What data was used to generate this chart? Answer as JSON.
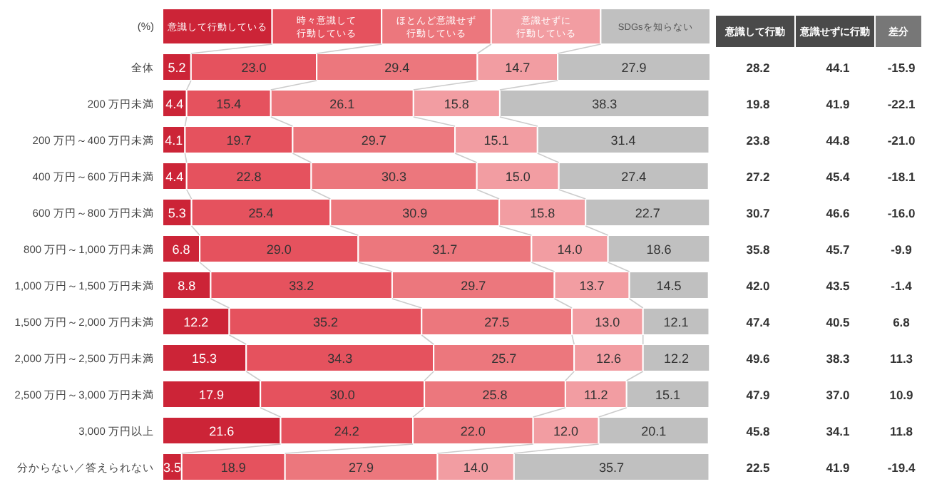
{
  "chart_data": [
    {
      "type": "bar",
      "orientation": "horizontal",
      "stacked": true,
      "legend": "top",
      "annotations": [
        "(%)"
      ],
      "categories": [
        "全体",
        "200 万円未満",
        "200 万円～400 万円未満",
        "400 万円～600 万円未満",
        "600 万円～800 万円未満",
        "800 万円～1,000 万円未満",
        "1,000 万円～1,500 万円未満",
        "1,500 万円～2,000 万円未満",
        "2,000 万円～2,500 万円未満",
        "2,500 万円～3,000 万円未満",
        "3,000 万円以上",
        "分からない／答えられない"
      ],
      "series": [
        {
          "name": "意識して行動している",
          "color": "#cc2437",
          "values": [
            5.2,
            4.4,
            4.1,
            4.4,
            5.3,
            6.8,
            8.8,
            12.2,
            15.3,
            17.9,
            21.6,
            3.5
          ],
          "value_labels": [
            "5.2",
            "4.4",
            "4.1",
            "4.4",
            "5.3",
            "6.8",
            "8.8",
            "12.2",
            "15.3",
            "17.9",
            "21.6",
            "3.5"
          ]
        },
        {
          "name": "時々意識して行動している",
          "color": "#e5525e",
          "values": [
            23.0,
            15.4,
            19.7,
            22.8,
            25.4,
            29.0,
            33.2,
            35.2,
            34.3,
            30.0,
            24.2,
            18.9
          ],
          "value_labels": [
            "23.0",
            "15.4",
            "19.7",
            "22.8",
            "25.4",
            "29.0",
            "33.2",
            "35.2",
            "34.3",
            "30.0",
            "24.2",
            "18.9"
          ]
        },
        {
          "name": "ほとんど意識せず行動している",
          "color": "#ec777d",
          "values": [
            29.4,
            26.1,
            29.7,
            30.3,
            30.9,
            31.7,
            29.7,
            27.5,
            25.7,
            25.8,
            22.0,
            27.9
          ],
          "value_labels": [
            "29.4",
            "26.1",
            "29.7",
            "30.3",
            "30.9",
            "31.7",
            "29.7",
            "27.5",
            "25.7",
            "25.8",
            "22.0",
            "27.9"
          ]
        },
        {
          "name": "意識せずに行動している",
          "color": "#f29da2",
          "values": [
            14.7,
            15.8,
            15.1,
            15.0,
            15.8,
            14.0,
            13.7,
            13.0,
            12.6,
            11.2,
            12.0,
            14.0
          ],
          "value_labels": [
            "14.7",
            "15.8",
            "15.1",
            "15.0",
            "15.8",
            "14.0",
            "13.7",
            "13.0",
            "12.6",
            "11.2",
            "12.0",
            "14.0"
          ]
        },
        {
          "name": "SDGsを知らない",
          "color": "#c0c0c0",
          "values": [
            27.9,
            38.3,
            31.4,
            27.4,
            22.7,
            18.6,
            14.5,
            12.1,
            12.2,
            15.1,
            20.1,
            35.7
          ],
          "value_labels": [
            "27.9",
            "38.3",
            "31.4",
            "27.4",
            "22.7",
            "18.6",
            "14.5",
            "12.1",
            "12.2",
            "15.1",
            "20.1",
            "35.7"
          ]
        }
      ]
    },
    {
      "type": "other",
      "categories": [
        "意識して行動",
        "意識せずに行動",
        "差分"
      ],
      "cell_labels": [
        [
          "28.2",
          "44.1",
          "-15.9"
        ],
        [
          "19.8",
          "41.9",
          "-22.1"
        ],
        [
          "23.8",
          "44.8",
          "-21.0"
        ],
        [
          "27.2",
          "45.4",
          "-18.1"
        ],
        [
          "30.7",
          "46.6",
          "-16.0"
        ],
        [
          "35.8",
          "45.7",
          "-9.9"
        ],
        [
          "42.0",
          "43.5",
          "-1.4"
        ],
        [
          "47.4",
          "40.5",
          "6.8"
        ],
        [
          "49.6",
          "38.3",
          "11.3"
        ],
        [
          "47.9",
          "37.0",
          "10.9"
        ],
        [
          "45.8",
          "34.1",
          "11.8"
        ],
        [
          "22.5",
          "41.9",
          "-19.4"
        ]
      ]
    }
  ]
}
